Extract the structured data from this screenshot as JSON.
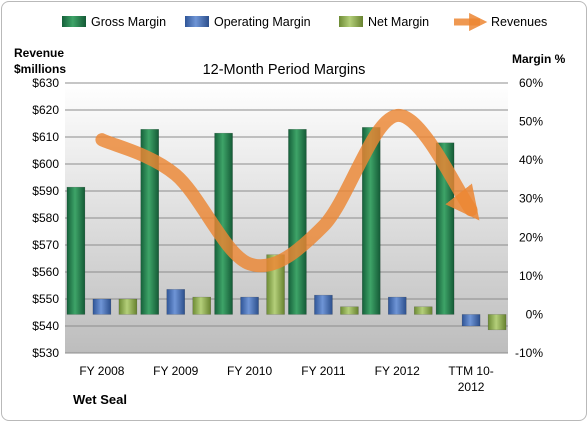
{
  "chart_data": {
    "type": "bar",
    "title": "12-Month Period Margins",
    "company": "Wet Seal",
    "categories": [
      "FY 2008",
      "FY 2009",
      "FY 2010",
      "FY 2011",
      "FY 2012",
      "TTM 10-2012"
    ],
    "y_left_label": [
      "Revenue",
      "$millions"
    ],
    "y_right_label": "Margin %",
    "y_left_ticks": [
      "$530",
      "$540",
      "$550",
      "$560",
      "$570",
      "$580",
      "$590",
      "$600",
      "$610",
      "$620",
      "$630"
    ],
    "y_right_ticks": [
      "-10%",
      "0%",
      "10%",
      "20%",
      "30%",
      "40%",
      "50%",
      "60%"
    ],
    "ylim_left": [
      530,
      630
    ],
    "ylim_right": [
      -10,
      60
    ],
    "series": [
      {
        "name": "Gross Margin",
        "axis": "right",
        "values": [
          33,
          48,
          47,
          48,
          48.5,
          44.5
        ],
        "color": "#1e7b46"
      },
      {
        "name": "Operating Margin",
        "axis": "right",
        "values": [
          4,
          6.5,
          4.5,
          5,
          4.5,
          -3
        ],
        "color": "#4472c4"
      },
      {
        "name": "Net Margin",
        "axis": "right",
        "values": [
          4,
          4.5,
          15.5,
          2,
          2,
          -4
        ],
        "color": "#8fb04f"
      },
      {
        "name": "Revenues",
        "axis": "left",
        "type": "line",
        "values": [
          609,
          596,
          563,
          577,
          618,
          583
        ],
        "color": "#ec8633"
      }
    ],
    "legend_position": "top",
    "grid": true
  }
}
